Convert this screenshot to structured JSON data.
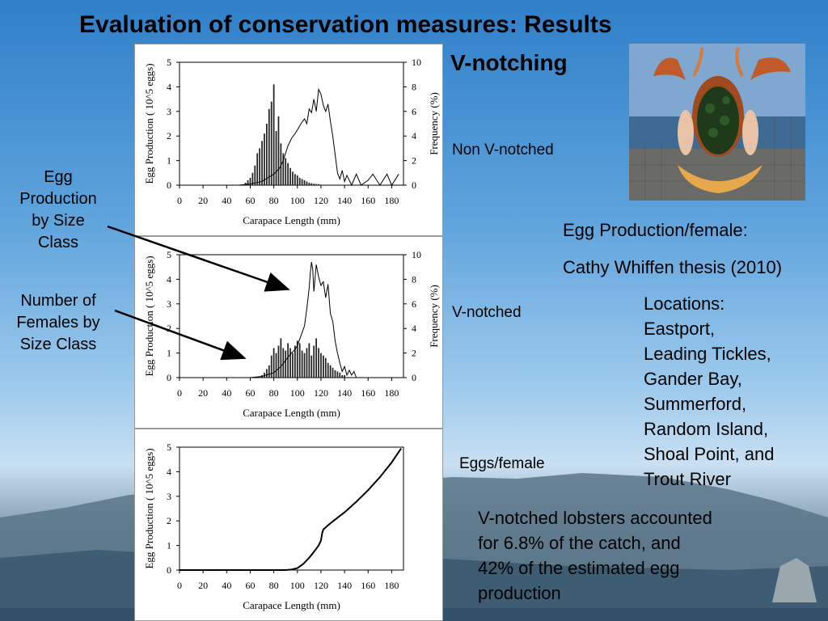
{
  "title": "Evaluation of conservation measures: Results",
  "subtitle": "V-notching",
  "labels": {
    "non_vnotched": "Non V-notched",
    "vnotched": "V-notched",
    "eggs_female": "Eggs/female",
    "egg_prod_female": "Egg Production/female:",
    "thesis": "Cathy Whiffen thesis (2010)",
    "egg_by_size_lines": [
      "Egg",
      "Production",
      "by Size",
      "Class"
    ],
    "females_by_size_lines": [
      "Number of",
      "Females by",
      "Size Class"
    ],
    "locations_lines": [
      "Locations:",
      "Eastport,",
      "Leading Tickles,",
      "Gander Bay,",
      "Summerford,",
      "Random Island,",
      "Shoal Point, and",
      "Trout River"
    ],
    "note_lines": [
      "V-notched lobsters accounted",
      "for 6.8% of the catch, and",
      "42% of the estimated egg",
      "production"
    ]
  },
  "colors": {
    "bars": "#222222",
    "line": "#000000",
    "title": "#000000"
  },
  "chart_data": [
    {
      "type": "bar",
      "name": "Non V-notched",
      "xlabel": "Carapace Length (mm)",
      "ylabel": "Egg Production  ( 10^5 eggs)",
      "y2label": "Frequency (%)",
      "xlim": [
        0,
        190
      ],
      "ylim": [
        0,
        5
      ],
      "y2lim": [
        0,
        10
      ],
      "xticks": [
        "0",
        "20",
        "40",
        "60",
        "80",
        "100",
        "120",
        "140",
        "160",
        "180"
      ],
      "yticks": [
        "0",
        "1",
        "2",
        "3",
        "4",
        "5"
      ],
      "y2ticks": [
        "0",
        "2",
        "4",
        "6",
        "8",
        "10"
      ],
      "bars_x": [
        56,
        58,
        60,
        62,
        64,
        66,
        68,
        70,
        72,
        74,
        76,
        78,
        80,
        82,
        84,
        86,
        88,
        90,
        92,
        94,
        96,
        98,
        100,
        102,
        104,
        106,
        108,
        110,
        112,
        114,
        116,
        118,
        120
      ],
      "bars_y": [
        0.1,
        0.2,
        0.3,
        0.5,
        0.8,
        1.3,
        1.5,
        1.8,
        2.1,
        2.5,
        3.1,
        3.4,
        4.1,
        2.2,
        2.8,
        1.7,
        1.3,
        1.1,
        0.9,
        0.7,
        0.55,
        0.45,
        0.4,
        0.3,
        0.25,
        0.2,
        0.15,
        0.1,
        0.08,
        0.06,
        0.05,
        0.04,
        0.02
      ],
      "freq_x": [
        50,
        60,
        70,
        75,
        80,
        85,
        88,
        90,
        92,
        95,
        98,
        100,
        103,
        106,
        108,
        110,
        112,
        114,
        116,
        118,
        120,
        122,
        124,
        126,
        128,
        130,
        132,
        134,
        136,
        138,
        140,
        142,
        146,
        150,
        154,
        160,
        164,
        170,
        176,
        180,
        186
      ],
      "freq_y": [
        0,
        0.1,
        0.3,
        0.6,
        0.9,
        1.4,
        2.0,
        2.6,
        3.2,
        3.8,
        4.2,
        4.5,
        5.0,
        5.4,
        5.0,
        6.2,
        5.9,
        7.0,
        6.0,
        7.8,
        7.4,
        6.5,
        6.0,
        6.6,
        5.2,
        4.0,
        2.5,
        1.0,
        0.5,
        1.2,
        0.3,
        0.8,
        0,
        0.9,
        0,
        0.4,
        0.9,
        0,
        0.9,
        0,
        0.9
      ]
    },
    {
      "type": "bar",
      "name": "V-notched",
      "xlabel": "Carapace Length (mm)",
      "ylabel": "Egg Production  ( 10^5 eggs)",
      "y2label": "Frequency (%)",
      "xlim": [
        0,
        190
      ],
      "ylim": [
        0,
        5
      ],
      "y2lim": [
        0,
        10
      ],
      "xticks": [
        "0",
        "20",
        "40",
        "60",
        "80",
        "100",
        "120",
        "140",
        "160",
        "180"
      ],
      "yticks": [
        "0",
        "1",
        "2",
        "3",
        "4",
        "5"
      ],
      "y2ticks": [
        "0",
        "2",
        "4",
        "6",
        "8",
        "10"
      ],
      "bars_x": [
        70,
        72,
        74,
        76,
        78,
        80,
        82,
        84,
        86,
        88,
        90,
        92,
        94,
        96,
        98,
        100,
        102,
        104,
        106,
        108,
        110,
        112,
        114,
        116,
        118,
        120,
        122,
        124,
        126,
        128,
        130,
        132,
        134,
        136,
        138,
        140
      ],
      "bars_y": [
        0.1,
        0.2,
        0.35,
        0.5,
        0.9,
        1.2,
        1.0,
        1.3,
        1.6,
        1.2,
        1.1,
        1.4,
        1.2,
        1.0,
        1.3,
        1.5,
        1.4,
        1.1,
        1.0,
        1.2,
        1.4,
        0.9,
        1.3,
        1.6,
        1.2,
        1.0,
        0.9,
        0.8,
        0.6,
        0.5,
        0.4,
        0.3,
        0.25,
        0.2,
        0.1,
        0.1
      ],
      "freq_x": [
        60,
        70,
        80,
        86,
        90,
        94,
        98,
        100,
        103,
        106,
        108,
        110,
        111,
        112,
        113,
        114,
        116,
        118,
        120,
        122,
        124,
        126,
        128,
        130,
        132,
        134,
        136,
        138,
        140,
        142,
        144,
        146,
        148,
        150
      ],
      "freq_y": [
        0,
        0.1,
        0.4,
        0.9,
        1.4,
        1.9,
        2.3,
        2.6,
        3.4,
        4.2,
        5.6,
        7.3,
        8.6,
        9.4,
        8.8,
        7.0,
        9.2,
        8.2,
        7.5,
        7.8,
        6.5,
        7.6,
        5.2,
        4.6,
        3.0,
        2.0,
        1.2,
        0.5,
        0.9,
        0.2,
        0.6,
        0.2,
        0.5,
        0
      ]
    },
    {
      "type": "line",
      "name": "Eggs/female",
      "xlabel": "Carapace Length (mm)",
      "ylabel": "Egg Production  ( 10^5 eggs)",
      "xlim": [
        0,
        190
      ],
      "ylim": [
        0,
        5
      ],
      "xticks": [
        "0",
        "20",
        "40",
        "60",
        "80",
        "100",
        "120",
        "140",
        "160",
        "180"
      ],
      "yticks": [
        "0",
        "1",
        "2",
        "3",
        "4",
        "5"
      ],
      "x": [
        0,
        90,
        95,
        100,
        105,
        110,
        115,
        118,
        120,
        121,
        122,
        125,
        130,
        140,
        150,
        160,
        170,
        180,
        188
      ],
      "y": [
        0,
        0,
        0.02,
        0.08,
        0.25,
        0.5,
        0.8,
        1.0,
        1.2,
        1.5,
        1.65,
        1.78,
        1.98,
        2.35,
        2.78,
        3.25,
        3.78,
        4.38,
        4.95
      ]
    }
  ]
}
